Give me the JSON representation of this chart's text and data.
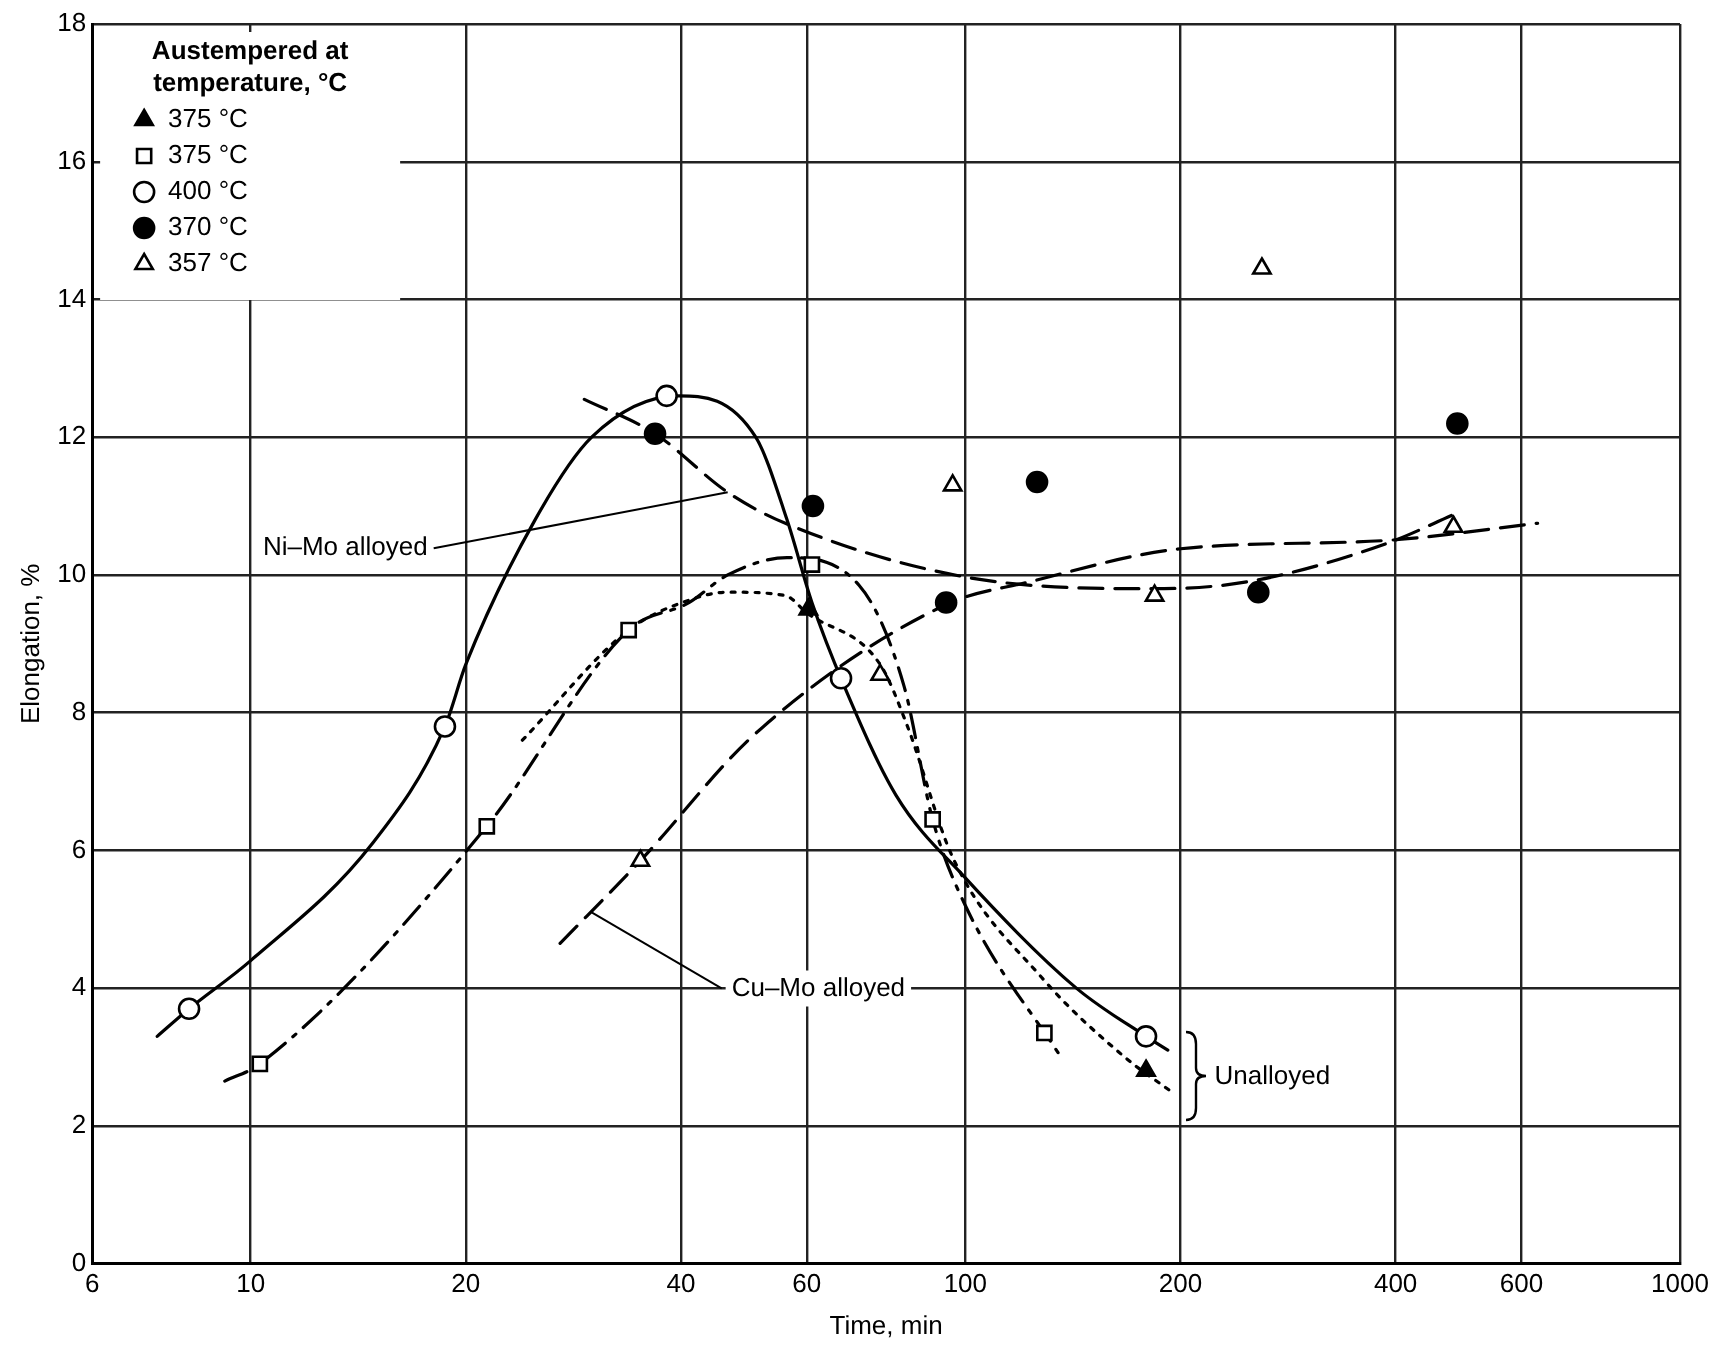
{
  "chart_data": {
    "type": "scatter",
    "xlabel": "Time, min",
    "ylabel": "Elongation, %",
    "legend_title": "Austempered at temperature, °C",
    "log": "x",
    "xlim": [
      6,
      1000
    ],
    "xticks": [
      6,
      10,
      20,
      40,
      60,
      100,
      200,
      400,
      600,
      1000
    ],
    "ylim": [
      0,
      18
    ],
    "yticks": [
      0,
      2,
      4,
      6,
      8,
      10,
      12,
      14,
      16,
      18
    ],
    "grid": true,
    "legend": "top left",
    "series": [
      {
        "name": "375 °C",
        "marker": "triangle",
        "color": "#000000",
        "x": [
          60.3,
          179
        ],
        "values": [
          9.5,
          2.8
        ]
      },
      {
        "name": "375 °C",
        "marker": "square",
        "color": "#ffffff",
        "x": [
          10.3,
          21.4,
          33.8,
          61,
          90,
          129
        ],
        "values": [
          2.9,
          6.35,
          9.2,
          10.15,
          6.45,
          3.35
        ]
      },
      {
        "name": "400 °C",
        "marker": "circle",
        "color": "#ffffff",
        "x": [
          8.2,
          18.7,
          38.2,
          67,
          179
        ],
        "values": [
          3.7,
          7.8,
          12.6,
          8.5,
          3.3
        ]
      },
      {
        "name": "370 °C",
        "marker": "circle",
        "color": "#000000",
        "x": [
          36.8,
          61.2,
          94,
          126,
          257,
          488
        ],
        "values": [
          12.05,
          11.0,
          9.6,
          11.35,
          9.75,
          12.2
        ]
      },
      {
        "name": "357 °C",
        "marker": "triangle",
        "color": "#ffffff",
        "x": [
          35.1,
          76,
          96,
          184,
          260,
          482
        ],
        "values": [
          5.85,
          8.55,
          11.3,
          9.7,
          14.45,
          10.7
        ]
      },
      {
        "type": "line",
        "marker": "none",
        "line_style": "solid",
        "color": "#000000",
        "x": [
          7.4,
          8.2,
          10,
          14.8,
          18.7,
          20,
          25,
          30,
          39.7,
          50.9,
          56.3,
          61,
          67.6,
          80,
          100,
          143,
          179,
          192
        ],
        "values": [
          3.3,
          3.7,
          4.4,
          6.1,
          7.8,
          8.7,
          10.8,
          12,
          12.6,
          12,
          10.8,
          9.6,
          8.4,
          6.8,
          5.6,
          4,
          3.3,
          3.1
        ]
      },
      {
        "type": "line",
        "marker": "none",
        "line_style": "dashdot",
        "color": "#000000",
        "x": [
          9.2,
          10.3,
          21.4,
          33.8,
          41.1,
          46.5,
          56.3,
          71,
          82,
          90,
          100,
          137
        ],
        "values": [
          2.65,
          2.9,
          6.35,
          9.2,
          9.6,
          10.0,
          10.25,
          9.85,
          8.4,
          6.45,
          5.2,
          2.95
        ]
      },
      {
        "type": "line",
        "marker": "none",
        "line_style": "dotted",
        "color": "#000000",
        "x": [
          24,
          33.8,
          41.5,
          46.5,
          56,
          60,
          76,
          83,
          96,
          128,
          167,
          194
        ],
        "values": [
          7.6,
          9.2,
          9.65,
          9.75,
          9.7,
          9.45,
          8.7,
          7.8,
          5.9,
          4.15,
          3.0,
          2.5
        ]
      },
      {
        "type": "line",
        "marker": "none",
        "line_style": "dashed",
        "color": "#000000",
        "x": [
          29.3,
          36.8,
          46.5,
          56,
          100,
          183,
          248,
          387,
          488
        ],
        "values": [
          12.55,
          12.05,
          11.2,
          10.75,
          9.97,
          9.8,
          9.9,
          10.45,
          10.9
        ]
      },
      {
        "type": "line",
        "marker": "none",
        "line_style": "dashed",
        "color": "#000000",
        "x": [
          27.1,
          35.1,
          50.9,
          94,
          123,
          200,
          387,
          632
        ],
        "values": [
          4.65,
          5.85,
          7.7,
          9.57,
          9.9,
          10.38,
          10.5,
          10.75
        ]
      }
    ],
    "annotations": [
      {
        "text": "Ni–Mo alloyed",
        "x": 46.5,
        "y": 11.2
      },
      {
        "text": "Cu–Mo alloyed",
        "x": 30,
        "y": 5.1
      },
      "Unalloyed"
    ]
  }
}
